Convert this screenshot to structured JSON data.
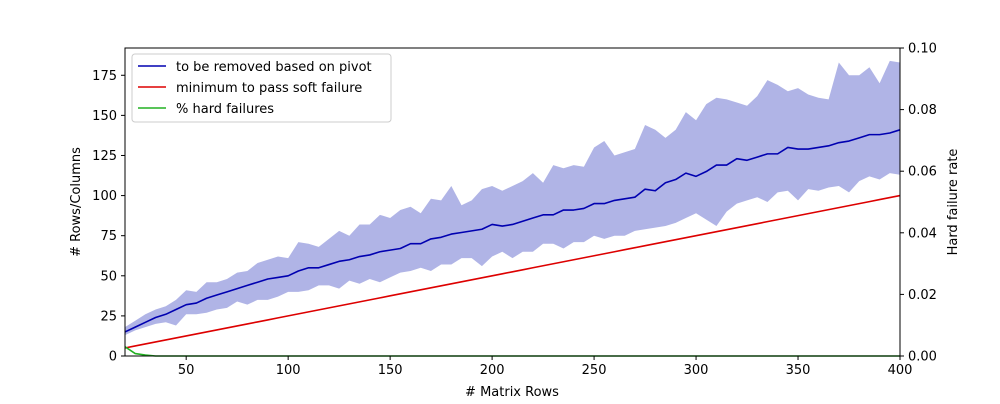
{
  "chart_data": {
    "type": "line",
    "x": [
      20,
      25,
      30,
      35,
      40,
      45,
      50,
      55,
      60,
      65,
      70,
      75,
      80,
      85,
      90,
      95,
      100,
      105,
      110,
      115,
      120,
      125,
      130,
      135,
      140,
      145,
      150,
      155,
      160,
      165,
      170,
      175,
      180,
      185,
      190,
      195,
      200,
      205,
      210,
      215,
      220,
      225,
      230,
      235,
      240,
      245,
      250,
      255,
      260,
      265,
      270,
      275,
      280,
      285,
      290,
      295,
      300,
      305,
      310,
      315,
      320,
      325,
      330,
      335,
      340,
      345,
      350,
      355,
      360,
      365,
      370,
      375,
      380,
      385,
      390,
      395,
      400
    ],
    "series": [
      {
        "name": "to be removed based on pivot",
        "color": "#0000b0",
        "axis": "left",
        "values": [
          15,
          18,
          21,
          24,
          26,
          29,
          32,
          33,
          36,
          38,
          40,
          42,
          44,
          46,
          48,
          49,
          50,
          53,
          55,
          55,
          57,
          59,
          60,
          62,
          63,
          65,
          66,
          67,
          70,
          70,
          73,
          74,
          76,
          77,
          78,
          79,
          82,
          81,
          82,
          84,
          86,
          88,
          88,
          91,
          91,
          92,
          95,
          95,
          97,
          98,
          99,
          104,
          103,
          108,
          110,
          114,
          112,
          115,
          119,
          119,
          123,
          122,
          124,
          126,
          126,
          130,
          129,
          129,
          130,
          131,
          133,
          134,
          136,
          138,
          138,
          139,
          141
        ]
      },
      {
        "name": "minimum to pass soft failure",
        "color": "#dd0000",
        "axis": "left",
        "values": [
          5,
          6.25,
          7.5,
          8.75,
          10,
          11.25,
          12.5,
          13.75,
          15,
          16.25,
          17.5,
          18.75,
          20,
          21.25,
          22.5,
          23.75,
          25,
          26.25,
          27.5,
          28.75,
          30,
          31.25,
          32.5,
          33.75,
          35,
          36.25,
          37.5,
          38.75,
          40,
          41.25,
          42.5,
          43.75,
          45,
          46.25,
          47.5,
          48.75,
          50,
          51.25,
          52.5,
          53.75,
          55,
          56.25,
          57.5,
          58.75,
          60,
          61.25,
          62.5,
          63.75,
          65,
          66.25,
          67.5,
          68.75,
          70,
          71.25,
          72.5,
          73.75,
          75,
          76.25,
          77.5,
          78.75,
          80,
          81.25,
          82.5,
          83.75,
          85,
          86.25,
          87.5,
          88.75,
          90,
          91.25,
          92.5,
          93.75,
          95,
          96.25,
          97.5,
          98.75,
          100
        ]
      },
      {
        "name": "% hard failures",
        "color": "#22b022",
        "axis": "right",
        "values": [
          0.003,
          0.0008,
          0.0003,
          0,
          0,
          0,
          0,
          0,
          0,
          0,
          0,
          0,
          0,
          0,
          0,
          0,
          0,
          0,
          0,
          0,
          0,
          0,
          0,
          0,
          0,
          0,
          0,
          0,
          0,
          0,
          0,
          0,
          0,
          0,
          0,
          0,
          0,
          0,
          0,
          0,
          0,
          0,
          0,
          0,
          0,
          0,
          0,
          0,
          0,
          0,
          0,
          0,
          0,
          0,
          0,
          0,
          0,
          0,
          0,
          0,
          0,
          0,
          0,
          0,
          0,
          0,
          0,
          0,
          0,
          0,
          0,
          0,
          0,
          0,
          0,
          0,
          0
        ]
      }
    ],
    "band": {
      "series": "to be removed based on pivot",
      "color": "#b0b4e6",
      "lower": [
        13,
        16,
        18,
        20,
        21,
        19,
        26,
        26,
        27,
        29,
        30,
        34,
        32,
        35,
        35,
        37,
        40,
        40,
        41,
        44,
        44,
        42,
        47,
        45,
        48,
        46,
        49,
        52,
        53,
        55,
        53,
        57,
        57,
        61,
        61,
        56,
        62,
        65,
        61,
        65,
        65,
        70,
        70,
        67,
        71,
        71,
        75,
        73,
        75,
        75,
        78,
        79,
        80,
        81,
        83,
        86,
        89,
        85,
        81,
        90,
        95,
        97,
        99,
        96,
        102,
        103,
        97,
        104,
        103,
        105,
        106,
        102,
        109,
        112,
        110,
        114,
        113
      ],
      "upper": [
        18,
        22,
        26,
        29,
        31,
        35,
        41,
        40,
        46,
        46,
        48,
        52,
        53,
        58,
        60,
        62,
        61,
        71,
        70,
        68,
        73,
        78,
        75,
        82,
        82,
        88,
        86,
        91,
        93,
        89,
        98,
        97,
        106,
        94,
        97,
        104,
        106,
        103,
        106,
        109,
        114,
        108,
        119,
        117,
        119,
        118,
        130,
        134,
        125,
        127,
        129,
        144,
        141,
        136,
        141,
        152,
        147,
        157,
        161,
        160,
        158,
        156,
        162,
        172,
        169,
        165,
        167,
        163,
        161,
        160,
        183,
        175,
        175,
        180,
        170,
        184,
        183
      ]
    },
    "title": "",
    "xlabel": "# Matrix Rows",
    "ylabel": "# Rows/Columns",
    "y2label": "Hard failure rate",
    "xlim": [
      20,
      400
    ],
    "ylim": [
      0,
      192
    ],
    "y2lim": [
      0,
      0.1
    ],
    "xticks": [
      50,
      100,
      150,
      200,
      250,
      300,
      350,
      400
    ],
    "yticks": [
      0,
      25,
      50,
      75,
      100,
      125,
      150,
      175
    ],
    "y2ticks": [
      0.0,
      0.02,
      0.04,
      0.06,
      0.08,
      0.1
    ],
    "y2tick_labels": [
      "0.00",
      "0.02",
      "0.04",
      "0.06",
      "0.08",
      "0.10"
    ],
    "grid": false,
    "legend_position": "top-left"
  }
}
